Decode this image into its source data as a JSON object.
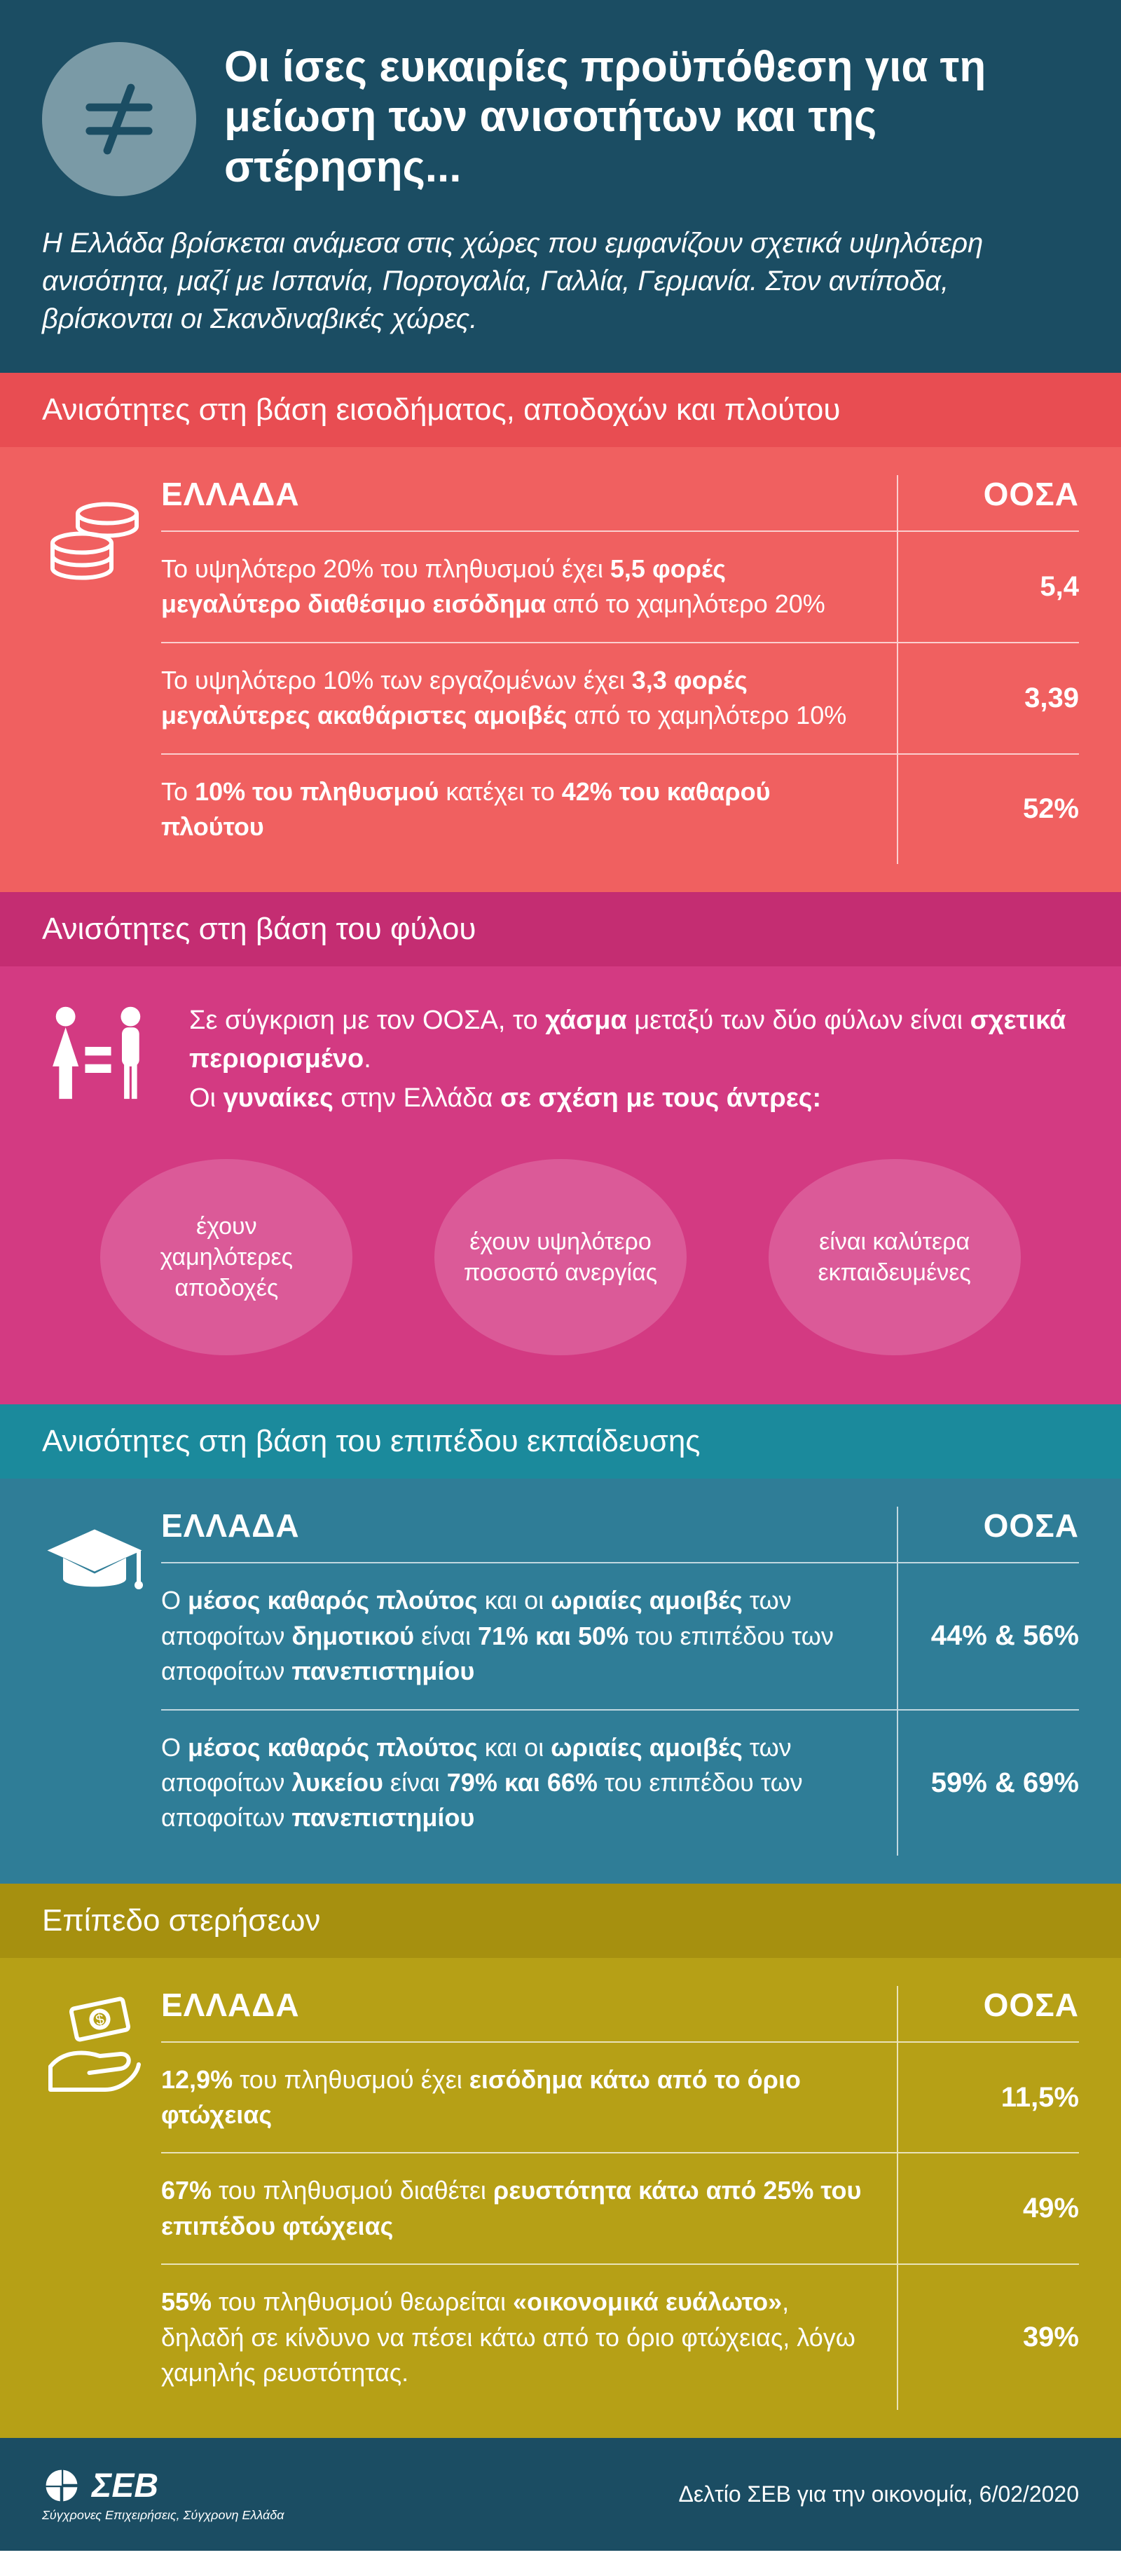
{
  "colors": {
    "header_bg": "#1b4d63",
    "header_icon_bg": "#7a9aa6",
    "red_head": "#e84d52",
    "red_body": "#f06060",
    "pink_head": "#c42d72",
    "pink_body": "#d33a82",
    "pink_bubble": "#db5a98",
    "teal_head": "#1b8a9c",
    "teal_body": "#2f7d97",
    "olive_head": "#a6900f",
    "olive_body": "#b6a016",
    "text_white": "#ffffff",
    "divider": "rgba(255,255,255,0.7)"
  },
  "header": {
    "title": "Οι ίσες ευκαιρίες προϋπόθεση για τη μείωση των ανισοτήτων και της στέρησης...",
    "subtitle": "Η Ελλάδα βρίσκεται ανάμεσα στις χώρες που εμφανίζουν σχετικά υψηλότερη ανισότητα, μαζί με Ισπανία, Πορτογαλία, Γαλλία, Γερμανία. Στον αντίποδα, βρίσκονται οι Σκανδιναβικές χώρες."
  },
  "income": {
    "heading": "Ανισότητες στη βάση εισοδήματος, αποδοχών και πλούτου",
    "col_greece": "ΕΛΛΑΔΑ",
    "col_oecd": "ΟΟΣΑ",
    "rows": [
      {
        "greece_html": "Το υψηλότερο 20% του πληθυσμού έχει <b>5,5 φορές μεγαλύτερο διαθέσιμο εισόδημα</b> από το χαμηλότερο 20%",
        "oecd": "5,4"
      },
      {
        "greece_html": "Το υψηλότερο 10% των εργαζομένων έχει <b>3,3 φορές μεγαλύτερες ακαθάριστες αμοιβές</b> από το χαμηλότερο 10%",
        "oecd": "3,39"
      },
      {
        "greece_html": "Το <b>10% του πληθυσμού</b> κατέχει το <b>42% του καθαρού πλούτου</b>",
        "oecd": "52%"
      }
    ]
  },
  "gender": {
    "heading": "Ανισότητες στη βάση του φύλου",
    "intro_html": "Σε σύγκριση με τον ΟΟΣΑ, το <b>χάσμα</b> μεταξύ των δύο φύλων είναι <b>σχετικά περιορισμένο</b>.<br>Οι <b>γυναίκες</b> στην Ελλάδα <b>σε σχέση με τους άντρες:</b>",
    "bubbles": [
      "έχουν χαμηλότερες αποδοχές",
      "έχουν υψηλότερο ποσοστό ανεργίας",
      "είναι καλύτερα εκπαιδευμένες"
    ]
  },
  "education": {
    "heading": "Ανισότητες στη βάση του επιπέδου εκπαίδευσης",
    "col_greece": "ΕΛΛΑΔΑ",
    "col_oecd": "ΟΟΣΑ",
    "rows": [
      {
        "greece_html": "Ο <b>μέσος καθαρός πλούτος</b> και οι <b>ωριαίες αμοιβές</b> των αποφοίτων <b>δημοτικού</b> είναι <b>71% και 50%</b> του επιπέδου των αποφοίτων <b>πανεπιστημίου</b>",
        "oecd": "44% & 56%"
      },
      {
        "greece_html": "Ο <b>μέσος καθαρός πλούτος</b> και οι <b>ωριαίες αμοιβές</b> των αποφοίτων <b>λυκείου</b> είναι <b>79% και 66%</b> του επιπέδου των αποφοίτων <b>πανεπιστημίου</b>",
        "oecd": "59% & 69%"
      }
    ]
  },
  "deprivation": {
    "heading": "Επίπεδο στερήσεων",
    "col_greece": "ΕΛΛΑΔΑ",
    "col_oecd": "ΟΟΣΑ",
    "rows": [
      {
        "greece_html": "<b>12,9%</b> του πληθυσμού έχει <b>εισόδημα κάτω από το όριο φτώχειας</b>",
        "oecd": "11,5%"
      },
      {
        "greece_html": "<b>67%</b> του πληθυσμού διαθέτει <b>ρευστότητα κάτω από 25% του επιπέδου φτώχειας</b>",
        "oecd": "49%"
      },
      {
        "greece_html": "<b>55%</b> του πληθυσμού θεωρείται <b>«οικονομικά ευάλωτο»</b>, δηλαδή σε κίνδυνο να πέσει κάτω από το όριο φτώχειας, λόγω χαμηλής ρευστότητας.",
        "oecd": "39%"
      }
    ]
  },
  "footer": {
    "logo_text": "ΣΕΒ",
    "logo_sub": "Σύγχρονες Επιχειρήσεις, Σύγχρονη Ελλάδα",
    "right": "Δελτίο ΣΕΒ για την οικονομία, 6/02/2020"
  }
}
